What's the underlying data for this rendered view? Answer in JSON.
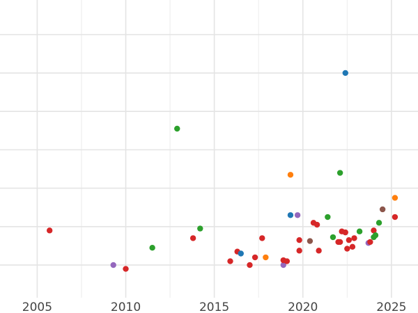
{
  "chart_data": {
    "type": "scatter",
    "title": "",
    "xlabel": "",
    "ylabel": "",
    "xlim": [
      2002.9,
      2026.5
    ],
    "ylim": [
      -1.7,
      13.8
    ],
    "x_ticks": [
      2005,
      2010,
      2015,
      2020,
      2025
    ],
    "x_tick_labels": [
      "2005",
      "2010",
      "2015",
      "2020",
      "2025"
    ],
    "y_gridlines": [
      0,
      2,
      4,
      6,
      8,
      10,
      12,
      14
    ],
    "grid": true,
    "legend": "none",
    "colors": {
      "blue": "#1f77b4",
      "orange": "#ff7f0e",
      "green": "#2ca02c",
      "red": "#d62728",
      "purple": "#9467bd",
      "brown": "#8c564b"
    },
    "points": [
      {
        "x": 2005.7,
        "y": 1.8,
        "color": "red"
      },
      {
        "x": 2009.3,
        "y": 0.0,
        "color": "purple"
      },
      {
        "x": 2010.0,
        "y": -0.2,
        "color": "red"
      },
      {
        "x": 2011.5,
        "y": 0.9,
        "color": "green"
      },
      {
        "x": 2012.9,
        "y": 7.1,
        "color": "green"
      },
      {
        "x": 2013.8,
        "y": 1.4,
        "color": "red"
      },
      {
        "x": 2014.2,
        "y": 1.9,
        "color": "green"
      },
      {
        "x": 2015.9,
        "y": 0.2,
        "color": "red"
      },
      {
        "x": 2016.3,
        "y": 0.7,
        "color": "red"
      },
      {
        "x": 2016.5,
        "y": 0.6,
        "color": "blue"
      },
      {
        "x": 2017.0,
        "y": 0.0,
        "color": "red"
      },
      {
        "x": 2017.3,
        "y": 0.4,
        "color": "red"
      },
      {
        "x": 2017.7,
        "y": 1.4,
        "color": "red"
      },
      {
        "x": 2017.9,
        "y": 0.4,
        "color": "orange"
      },
      {
        "x": 2018.9,
        "y": 0.0,
        "color": "purple"
      },
      {
        "x": 2018.9,
        "y": 0.25,
        "color": "red"
      },
      {
        "x": 2019.1,
        "y": 0.2,
        "color": "red"
      },
      {
        "x": 2019.3,
        "y": 4.7,
        "color": "orange"
      },
      {
        "x": 2019.3,
        "y": 2.6,
        "color": "blue"
      },
      {
        "x": 2019.7,
        "y": 2.6,
        "color": "purple"
      },
      {
        "x": 2019.8,
        "y": 1.3,
        "color": "red"
      },
      {
        "x": 2019.8,
        "y": 0.75,
        "color": "red"
      },
      {
        "x": 2020.4,
        "y": 1.25,
        "color": "brown"
      },
      {
        "x": 2020.6,
        "y": 2.2,
        "color": "red"
      },
      {
        "x": 2020.8,
        "y": 2.1,
        "color": "red"
      },
      {
        "x": 2020.9,
        "y": 0.75,
        "color": "red"
      },
      {
        "x": 2021.4,
        "y": 2.5,
        "color": "green"
      },
      {
        "x": 2021.7,
        "y": 1.45,
        "color": "green"
      },
      {
        "x": 2022.0,
        "y": 1.2,
        "color": "red"
      },
      {
        "x": 2022.1,
        "y": 1.2,
        "color": "red"
      },
      {
        "x": 2022.1,
        "y": 4.8,
        "color": "green"
      },
      {
        "x": 2022.2,
        "y": 1.75,
        "color": "red"
      },
      {
        "x": 2022.4,
        "y": 1.7,
        "color": "red"
      },
      {
        "x": 2022.4,
        "y": 10.0,
        "color": "blue"
      },
      {
        "x": 2022.5,
        "y": 0.85,
        "color": "red"
      },
      {
        "x": 2022.6,
        "y": 1.3,
        "color": "red"
      },
      {
        "x": 2022.8,
        "y": 0.95,
        "color": "red"
      },
      {
        "x": 2022.9,
        "y": 1.4,
        "color": "red"
      },
      {
        "x": 2023.2,
        "y": 1.75,
        "color": "green"
      },
      {
        "x": 2023.7,
        "y": 1.15,
        "color": "purple"
      },
      {
        "x": 2023.8,
        "y": 1.2,
        "color": "red"
      },
      {
        "x": 2024.0,
        "y": 1.8,
        "color": "red"
      },
      {
        "x": 2024.0,
        "y": 1.45,
        "color": "green"
      },
      {
        "x": 2024.1,
        "y": 1.55,
        "color": "green"
      },
      {
        "x": 2024.3,
        "y": 2.2,
        "color": "green"
      },
      {
        "x": 2024.5,
        "y": 2.9,
        "color": "brown"
      },
      {
        "x": 2025.2,
        "y": 3.5,
        "color": "orange"
      },
      {
        "x": 2025.2,
        "y": 2.5,
        "color": "red"
      }
    ]
  }
}
